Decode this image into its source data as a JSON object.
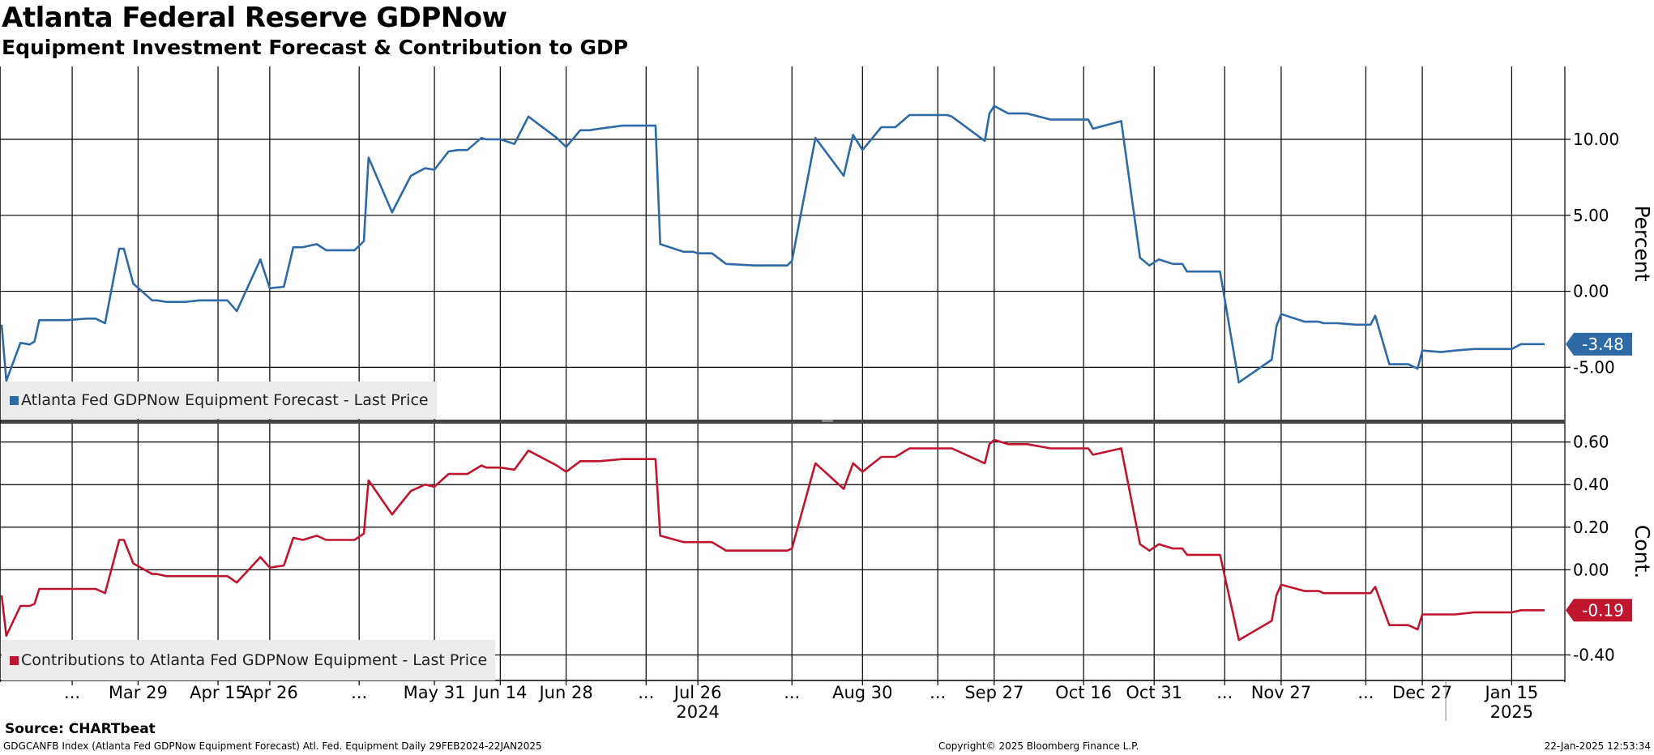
{
  "header": {
    "title": "Atlanta Federal Reserve GDPNow",
    "subtitle": "Equipment Investment Forecast & Contribution to GDP"
  },
  "footer": {
    "source": "Source: CHARTbeat",
    "ticker_info": "GDGCANFB Index (Atlanta Fed GDPNow Equipment Forecast) Atl. Fed. Equipment  Daily 29FEB2024-22JAN2025",
    "copyright": "Copyright© 2025 Bloomberg Finance L.P.",
    "timestamp": "22-Jan-2025 12:53:34"
  },
  "colors": {
    "forecast": "#2d6aa6",
    "contribution": "#c0152f",
    "grid": "#000000"
  },
  "chart_data": [
    {
      "type": "line",
      "panel": "top",
      "ylabel": "Percent",
      "ylim": [
        -8.5,
        14.8
      ],
      "yticks": [
        10,
        5,
        0,
        -5
      ],
      "ytick_labels": [
        "10.00",
        "5.00",
        "0.00",
        "-5.00"
      ],
      "legend": "Atlanta Fed GDPNow Equipment Forecast - Last Price",
      "legend_position": "bottom-left",
      "last_value_label": "-3.48",
      "series": [
        {
          "name": "Atlanta Fed GDPNow Equipment Forecast - Last Price",
          "x": [
            "2024-02-29",
            "2024-03-01",
            "2024-03-04",
            "2024-03-06",
            "2024-03-07",
            "2024-03-08",
            "2024-03-11",
            "2024-03-14",
            "2024-03-18",
            "2024-03-20",
            "2024-03-22",
            "2024-03-25",
            "2024-03-26",
            "2024-03-28",
            "2024-04-01",
            "2024-04-02",
            "2024-04-04",
            "2024-04-08",
            "2024-04-11",
            "2024-04-17",
            "2024-04-19",
            "2024-04-24",
            "2024-04-26",
            "2024-04-29",
            "2024-05-01",
            "2024-05-03",
            "2024-05-06",
            "2024-05-08",
            "2024-05-14",
            "2024-05-16",
            "2024-05-17",
            "2024-05-22",
            "2024-05-26",
            "2024-05-29",
            "2024-05-31",
            "2024-06-03",
            "2024-06-05",
            "2024-06-07",
            "2024-06-10",
            "2024-06-11",
            "2024-06-14",
            "2024-06-17",
            "2024-06-20",
            "2024-06-26",
            "2024-06-28",
            "2024-07-01",
            "2024-07-03",
            "2024-07-05",
            "2024-07-10",
            "2024-07-17",
            "2024-07-18",
            "2024-07-23",
            "2024-07-25",
            "2024-07-26",
            "2024-07-29",
            "2024-08-01",
            "2024-08-07",
            "2024-08-14",
            "2024-08-15",
            "2024-08-20",
            "2024-08-26",
            "2024-08-28",
            "2024-08-30",
            "2024-09-03",
            "2024-09-04",
            "2024-09-06",
            "2024-09-09",
            "2024-09-17",
            "2024-09-18",
            "2024-09-25",
            "2024-09-26",
            "2024-09-27",
            "2024-09-30",
            "2024-10-01",
            "2024-10-04",
            "2024-10-09",
            "2024-10-17",
            "2024-10-18",
            "2024-10-24",
            "2024-10-28",
            "2024-10-30",
            "2024-11-01",
            "2024-11-04",
            "2024-11-06",
            "2024-11-07",
            "2024-11-11",
            "2024-11-14",
            "2024-11-18",
            "2024-11-25",
            "2024-11-26",
            "2024-11-27",
            "2024-12-02",
            "2024-12-05",
            "2024-12-06",
            "2024-12-09",
            "2024-12-13",
            "2024-12-16",
            "2024-12-17",
            "2024-12-20",
            "2024-12-24",
            "2024-12-26",
            "2024-12-27",
            "2024-12-31",
            "2025-01-03",
            "2025-01-07",
            "2025-01-09",
            "2025-01-11",
            "2025-01-15",
            "2025-01-17",
            "2025-01-22"
          ],
          "y": [
            -2.2,
            -5.9,
            -3.4,
            -3.5,
            -3.3,
            -1.9,
            -1.9,
            -1.9,
            -1.8,
            -1.8,
            -2.1,
            2.8,
            2.8,
            0.5,
            -0.6,
            -0.6,
            -0.7,
            -0.7,
            -0.6,
            -0.6,
            -1.3,
            2.1,
            0.2,
            0.3,
            2.9,
            2.9,
            3.1,
            2.7,
            2.7,
            3.3,
            8.8,
            5.2,
            7.6,
            8.1,
            8.0,
            9.2,
            9.3,
            9.3,
            10.1,
            10.0,
            10.0,
            9.7,
            11.5,
            10.1,
            9.5,
            10.6,
            10.6,
            10.7,
            10.9,
            10.9,
            3.1,
            2.6,
            2.6,
            2.5,
            2.5,
            1.8,
            1.7,
            1.7,
            2.0,
            10.1,
            7.6,
            10.3,
            9.3,
            10.8,
            10.8,
            10.8,
            11.6,
            11.6,
            11.5,
            9.9,
            11.7,
            12.2,
            11.7,
            11.7,
            11.7,
            11.3,
            11.3,
            10.7,
            11.2,
            2.2,
            1.7,
            2.1,
            1.8,
            1.8,
            1.3,
            1.3,
            1.3,
            -6.0,
            -4.5,
            -2.3,
            -1.5,
            -2.0,
            -2.0,
            -2.1,
            -2.1,
            -2.2,
            -2.2,
            -1.6,
            -4.8,
            -4.8,
            -5.1,
            -3.9,
            -4.0,
            -3.9,
            -3.8,
            -3.8,
            -3.8,
            -3.8,
            -3.48,
            -3.48
          ]
        }
      ]
    },
    {
      "type": "line",
      "panel": "bottom",
      "ylabel": "Cont.",
      "ylim": [
        -0.52,
        0.69
      ],
      "yticks": [
        0.6,
        0.4,
        0.2,
        0.0,
        -0.4
      ],
      "ytick_labels": [
        "0.60",
        "0.40",
        "0.20",
        "0.00",
        "-0.40"
      ],
      "legend": "Contributions to Atlanta Fed GDPNow Equipment - Last Price",
      "legend_position": "bottom-left",
      "last_value_label": "-0.19",
      "series": [
        {
          "name": "Contributions to Atlanta Fed GDPNow Equipment - Last Price",
          "x": [
            "2024-02-29",
            "2024-03-01",
            "2024-03-04",
            "2024-03-06",
            "2024-03-07",
            "2024-03-08",
            "2024-03-11",
            "2024-03-14",
            "2024-03-18",
            "2024-03-20",
            "2024-03-22",
            "2024-03-25",
            "2024-03-26",
            "2024-03-28",
            "2024-04-01",
            "2024-04-02",
            "2024-04-04",
            "2024-04-08",
            "2024-04-11",
            "2024-04-17",
            "2024-04-19",
            "2024-04-24",
            "2024-04-26",
            "2024-04-29",
            "2024-05-01",
            "2024-05-03",
            "2024-05-06",
            "2024-05-08",
            "2024-05-14",
            "2024-05-16",
            "2024-05-17",
            "2024-05-22",
            "2024-05-26",
            "2024-05-29",
            "2024-05-31",
            "2024-06-03",
            "2024-06-05",
            "2024-06-07",
            "2024-06-10",
            "2024-06-11",
            "2024-06-14",
            "2024-06-17",
            "2024-06-20",
            "2024-06-26",
            "2024-06-28",
            "2024-07-01",
            "2024-07-03",
            "2024-07-05",
            "2024-07-10",
            "2024-07-17",
            "2024-07-18",
            "2024-07-23",
            "2024-07-25",
            "2024-07-26",
            "2024-07-29",
            "2024-08-01",
            "2024-08-07",
            "2024-08-14",
            "2024-08-15",
            "2024-08-20",
            "2024-08-26",
            "2024-08-28",
            "2024-08-30",
            "2024-09-03",
            "2024-09-04",
            "2024-09-06",
            "2024-09-09",
            "2024-09-17",
            "2024-09-18",
            "2024-09-25",
            "2024-09-26",
            "2024-09-27",
            "2024-09-30",
            "2024-10-01",
            "2024-10-04",
            "2024-10-09",
            "2024-10-17",
            "2024-10-18",
            "2024-10-24",
            "2024-10-28",
            "2024-10-30",
            "2024-11-01",
            "2024-11-04",
            "2024-11-06",
            "2024-11-07",
            "2024-11-11",
            "2024-11-14",
            "2024-11-18",
            "2024-11-25",
            "2024-11-26",
            "2024-11-27",
            "2024-12-02",
            "2024-12-05",
            "2024-12-06",
            "2024-12-09",
            "2024-12-13",
            "2024-12-16",
            "2024-12-17",
            "2024-12-20",
            "2024-12-24",
            "2024-12-26",
            "2024-12-27",
            "2024-12-31",
            "2025-01-03",
            "2025-01-07",
            "2025-01-09",
            "2025-01-11",
            "2025-01-15",
            "2025-01-17",
            "2025-01-22"
          ],
          "y": [
            -0.12,
            -0.31,
            -0.17,
            -0.17,
            -0.16,
            -0.09,
            -0.09,
            -0.09,
            -0.09,
            -0.09,
            -0.11,
            0.14,
            0.14,
            0.03,
            -0.02,
            -0.02,
            -0.03,
            -0.03,
            -0.03,
            -0.03,
            -0.06,
            0.06,
            0.01,
            0.02,
            0.15,
            0.14,
            0.16,
            0.14,
            0.14,
            0.17,
            0.42,
            0.26,
            0.37,
            0.4,
            0.39,
            0.45,
            0.45,
            0.45,
            0.49,
            0.48,
            0.48,
            0.47,
            0.56,
            0.49,
            0.46,
            0.51,
            0.51,
            0.51,
            0.52,
            0.52,
            0.16,
            0.13,
            0.13,
            0.13,
            0.13,
            0.09,
            0.09,
            0.09,
            0.1,
            0.5,
            0.38,
            0.5,
            0.46,
            0.53,
            0.53,
            0.53,
            0.57,
            0.57,
            0.57,
            0.5,
            0.59,
            0.61,
            0.59,
            0.59,
            0.59,
            0.57,
            0.57,
            0.54,
            0.57,
            0.12,
            0.09,
            0.12,
            0.1,
            0.1,
            0.07,
            0.07,
            0.07,
            -0.33,
            -0.24,
            -0.12,
            -0.07,
            -0.1,
            -0.1,
            -0.11,
            -0.11,
            -0.11,
            -0.11,
            -0.08,
            -0.26,
            -0.26,
            -0.28,
            -0.21,
            -0.21,
            -0.21,
            -0.2,
            -0.2,
            -0.2,
            -0.2,
            -0.19,
            -0.19
          ]
        }
      ]
    }
  ],
  "x_axis": {
    "start": "2024-02-29",
    "end": "2025-01-22",
    "ticks": [
      {
        "date": "2024-03-15",
        "label": "..."
      },
      {
        "date": "2024-03-29",
        "label": "Mar 29"
      },
      {
        "date": "2024-04-15",
        "label": "Apr 15"
      },
      {
        "date": "2024-04-26",
        "label": "Apr 26"
      },
      {
        "date": "2024-05-15",
        "label": "..."
      },
      {
        "date": "2024-05-31",
        "label": "May 31"
      },
      {
        "date": "2024-06-14",
        "label": "Jun 14"
      },
      {
        "date": "2024-06-28",
        "label": "Jun 28"
      },
      {
        "date": "2024-07-15",
        "label": "..."
      },
      {
        "date": "2024-07-26",
        "label": "Jul 26"
      },
      {
        "date": "2024-08-15",
        "label": "..."
      },
      {
        "date": "2024-08-30",
        "label": "Aug 30"
      },
      {
        "date": "2024-09-15",
        "label": "..."
      },
      {
        "date": "2024-09-27",
        "label": "Sep 27"
      },
      {
        "date": "2024-10-16",
        "label": "Oct 16"
      },
      {
        "date": "2024-10-31",
        "label": "Oct 31"
      },
      {
        "date": "2024-11-15",
        "label": "..."
      },
      {
        "date": "2024-11-27",
        "label": "Nov 27"
      },
      {
        "date": "2024-12-15",
        "label": "..."
      },
      {
        "date": "2024-12-27",
        "label": "Dec 27"
      },
      {
        "date": "2025-01-15",
        "label": "Jan 15"
      }
    ],
    "year_labels": [
      {
        "date": "2024-07-26",
        "label": "2024"
      },
      {
        "date": "2025-01-15",
        "label": "2025"
      }
    ],
    "year_separator": "2025-01-01"
  }
}
